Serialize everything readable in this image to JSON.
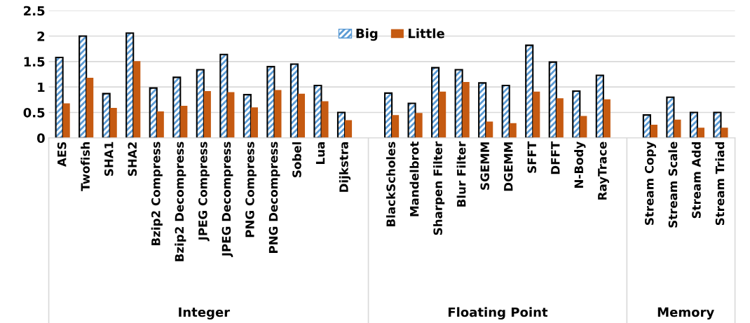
{
  "chart_data": {
    "type": "bar",
    "categories": [
      "AES",
      "Twofish",
      "SHA1",
      "SHA2",
      "Bzip2 Compress",
      "Bzip2 Decompress",
      "JPEG Compress",
      "JPEG Decompress",
      "PNG Compress",
      "PNG Decompress",
      "Sobel",
      "Lua",
      "Dijkstra",
      null,
      "BlackScholes",
      "Mandelbrot",
      "Sharpen Filter",
      "Blur Filter",
      "SGEMM",
      "DGEMM",
      "SFFT",
      "DFFT",
      "N-Body",
      "RayTrace",
      null,
      "Stream Copy",
      "Stream Scale",
      "Stream Add",
      "Stream Triad"
    ],
    "series": [
      {
        "name": "Big",
        "color": "#5b9bd5",
        "values": [
          1.58,
          2.0,
          0.87,
          2.06,
          0.98,
          1.19,
          1.34,
          1.64,
          0.85,
          1.4,
          1.45,
          1.03,
          0.5,
          null,
          0.88,
          0.68,
          1.38,
          1.34,
          1.08,
          1.03,
          1.82,
          1.49,
          0.92,
          1.23,
          null,
          0.45,
          0.8,
          0.5,
          0.5
        ]
      },
      {
        "name": "Little",
        "color": "#c55a11",
        "values": [
          0.68,
          1.18,
          0.59,
          1.51,
          0.52,
          0.63,
          0.92,
          0.9,
          0.6,
          0.94,
          0.87,
          0.72,
          0.35,
          null,
          0.45,
          0.49,
          0.91,
          1.1,
          0.32,
          0.29,
          0.91,
          0.78,
          0.43,
          0.76,
          null,
          0.26,
          0.36,
          0.2,
          0.2
        ]
      }
    ],
    "ylim": [
      0,
      2.5
    ],
    "yticks": [
      0,
      0.5,
      1,
      1.5,
      2,
      2.5
    ],
    "grid": "y",
    "legend": "top",
    "annotations": [
      "Integer",
      "Floating Point",
      "Memory"
    ]
  }
}
